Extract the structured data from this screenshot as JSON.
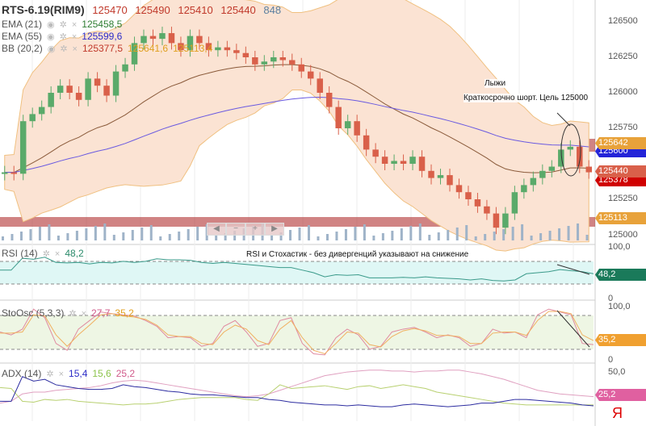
{
  "header": {
    "symbol": "RTS-6.19(RIM9)",
    "open": "125470",
    "high": "125490",
    "low": "125410",
    "close": "125440",
    "volume": "848"
  },
  "indicators": [
    {
      "name": "EMA (21)",
      "value": "125458,5"
    },
    {
      "name": "EMA (55)",
      "value": "125599,6"
    },
    {
      "name": "BB (20,2)",
      "v1": "125377,5",
      "v2": "125641,6",
      "v3": "125113,4"
    }
  ],
  "rsi": {
    "name": "RSI (14)",
    "value": "48,2",
    "tag": "48,2",
    "max": "100,0",
    "min": "0"
  },
  "sto": {
    "name": "StoOsc (5,3,3)",
    "k": "27,7",
    "d": "35,2",
    "tag": "35,2",
    "max": "100,0",
    "min": "0"
  },
  "adx": {
    "name": "ADX (14)",
    "adx": "15,4",
    "di_plus": "15,6",
    "di_minus": "25,2",
    "tag": "25,2",
    "level": "50,0"
  },
  "annotations": {
    "ski": "Лыжи",
    "short": "Краткосрочно шорт. Цель 125000",
    "rsi_note": "RSI и Стохастик - без дивергенций указывают на снижение"
  },
  "price_axis": [
    "126500",
    "126250",
    "126000",
    "125750",
    "125250",
    "125000"
  ],
  "price_tags": {
    "bb_upper": "125642",
    "ema55": "125600",
    "last": "125440",
    "bb_mid": "125378",
    "bb_lower": "125113"
  },
  "nav": {
    "left": "◀",
    "minus": "−",
    "plus": "+",
    "right": "▶"
  },
  "colors": {
    "up": "#5aaa6a",
    "down": "#d9604a",
    "band": "#f6c9a8"
  },
  "chart_data": {
    "type": "candlestick",
    "closes": [
      125440,
      125430,
      125800,
      125850,
      125900,
      126000,
      126050,
      126000,
      125950,
      126100,
      126050,
      125980,
      126150,
      126200,
      126350,
      126400,
      126380,
      126420,
      126350,
      126300,
      126400,
      126350,
      126300,
      126320,
      126300,
      126280,
      126250,
      126200,
      126220,
      126250,
      126230,
      126200,
      126150,
      126100,
      126000,
      125900,
      125750,
      125800,
      125700,
      125600,
      125550,
      125500,
      125520,
      125500,
      125550,
      125450,
      125400,
      125420,
      125350,
      125300,
      125250,
      125200,
      125150,
      125050,
      125150,
      125300,
      125350,
      125400,
      125450,
      125480,
      125600,
      125620,
      125480,
      125440
    ],
    "rsi": [
      55,
      55,
      78,
      76,
      80,
      70,
      69,
      70,
      67,
      70,
      69,
      72,
      70,
      72,
      77,
      75,
      75,
      74,
      70,
      68,
      70,
      68,
      66,
      64,
      62,
      60,
      60,
      55,
      50,
      42,
      46,
      45,
      46,
      40,
      40,
      40,
      41,
      40,
      42,
      40,
      39,
      38,
      36,
      38,
      35,
      34,
      36,
      48,
      50,
      52,
      56,
      54,
      52,
      48
    ],
    "sto_k": [
      50,
      45,
      55,
      90,
      75,
      30,
      18,
      55,
      70,
      85,
      82,
      80,
      78,
      70,
      60,
      40,
      42,
      40,
      25,
      30,
      60,
      70,
      50,
      25,
      30,
      70,
      75,
      30,
      12,
      10,
      40,
      55,
      45,
      20,
      25,
      50,
      55,
      58,
      50,
      40,
      45,
      40,
      25,
      30,
      55,
      48,
      50,
      40,
      80,
      90,
      85,
      80,
      30,
      28
    ],
    "sto_d": [
      48,
      48,
      50,
      80,
      78,
      45,
      25,
      45,
      62,
      80,
      82,
      78,
      76,
      72,
      62,
      45,
      42,
      42,
      30,
      28,
      50,
      62,
      55,
      35,
      28,
      55,
      70,
      40,
      18,
      12,
      30,
      50,
      48,
      28,
      24,
      42,
      52,
      56,
      52,
      44,
      44,
      42,
      30,
      30,
      48,
      50,
      50,
      44,
      70,
      86,
      86,
      82,
      45,
      35
    ],
    "adx": [
      20,
      20,
      47,
      42,
      44,
      38,
      36,
      34,
      33,
      33,
      34,
      38,
      36,
      35,
      33,
      31,
      30,
      28,
      27,
      27,
      26,
      25,
      24,
      24,
      22,
      21,
      19,
      18,
      17,
      16,
      16,
      15,
      16,
      15,
      14,
      14,
      16,
      17,
      16,
      15,
      14,
      15,
      16,
      18,
      18,
      20,
      22,
      22,
      21,
      20,
      19,
      18,
      16,
      15
    ],
    "di_plus": [
      35,
      34,
      20,
      19,
      22,
      21,
      22,
      20,
      19,
      18,
      17,
      16,
      17,
      17,
      18,
      20,
      22,
      23,
      24,
      24,
      24,
      24,
      22,
      21,
      28,
      38,
      34,
      35,
      36,
      37,
      35,
      33,
      36,
      37,
      34,
      36,
      38,
      36,
      34,
      30,
      28,
      26,
      24,
      22,
      20,
      18,
      17,
      16,
      16,
      16,
      16,
      16,
      16,
      16
    ],
    "di_minus": [
      18,
      20,
      28,
      30,
      30,
      32,
      33,
      34,
      35,
      37,
      40,
      42,
      43,
      42,
      40,
      38,
      36,
      34,
      32,
      30,
      28,
      26,
      25,
      26,
      28,
      32,
      36,
      40,
      44,
      48,
      50,
      52,
      53,
      54,
      54,
      53,
      53,
      52,
      53,
      53,
      54,
      54,
      52,
      50,
      47,
      44,
      40,
      36,
      32,
      30,
      28,
      27,
      26,
      25
    ]
  }
}
